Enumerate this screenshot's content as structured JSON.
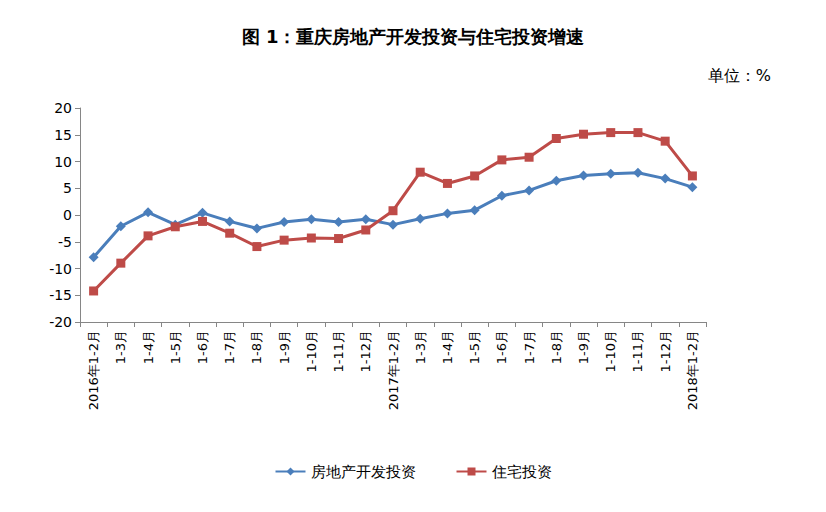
{
  "chart_data": {
    "type": "line",
    "title": "图 1：重庆房地产开发投资与住宅投资增速",
    "subtitle": "单位：%",
    "categories": [
      "2016年1-2月",
      "1-3月",
      "1-4月",
      "1-5月",
      "1-6月",
      "1-7月",
      "1-8月",
      "1-9月",
      "1-10月",
      "1-11月",
      "1-12月",
      "2017年1-2月",
      "1-3月",
      "1-4月",
      "1-5月",
      "1-6月",
      "1-7月",
      "1-8月",
      "1-9月",
      "1-10月",
      "1-11月",
      "1-12月",
      "2018年1-2月"
    ],
    "series": [
      {
        "name": "房地产开发投资",
        "color": "#4a7ebb",
        "marker": "diamond",
        "values": [
          -7.9,
          -2.1,
          0.5,
          -1.8,
          0.4,
          -1.2,
          -2.5,
          -1.3,
          -0.8,
          -1.3,
          -0.8,
          -1.8,
          -0.7,
          0.3,
          0.9,
          3.6,
          4.6,
          6.4,
          7.4,
          7.7,
          7.9,
          6.8,
          5.2
        ]
      },
      {
        "name": "住宅投资",
        "color": "#be4b48",
        "marker": "square",
        "values": [
          -14.2,
          -9.0,
          -3.9,
          -2.2,
          -1.2,
          -3.4,
          -5.9,
          -4.7,
          -4.3,
          -4.4,
          -2.8,
          0.8,
          8.0,
          5.9,
          7.3,
          10.3,
          10.8,
          14.3,
          15.1,
          15.4,
          15.4,
          13.8,
          7.3
        ]
      }
    ],
    "ylim": [
      -20,
      20
    ],
    "yticks": [
      -20,
      -15,
      -10,
      -5,
      0,
      5,
      10,
      15,
      20
    ],
    "grid": false,
    "legend": "bottom"
  }
}
